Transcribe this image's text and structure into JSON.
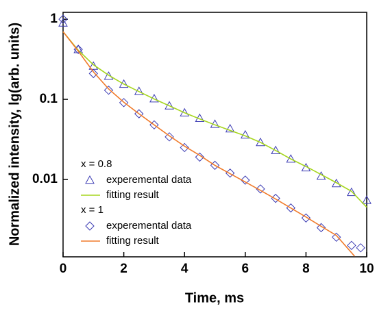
{
  "chart_data": {
    "type": "scatter",
    "x_label": "Time, ms",
    "y_label": "Normalized intensity, lg(arb. units)",
    "xlim": [
      0,
      10
    ],
    "xticks": [
      0,
      2,
      4,
      6,
      8,
      10
    ],
    "ylim": [
      0.00108,
      1.22
    ],
    "yticks": [
      0.01,
      0.1,
      1
    ],
    "y_log": true,
    "groups": [
      {
        "label": "x = 0.8",
        "series": [
          {
            "name": "experemental data",
            "marker": "triangle",
            "color": "#3b3bb3",
            "x": [
              0,
              0.5,
              1,
              1.5,
              2,
              2.5,
              3,
              3.5,
              4,
              4.5,
              5,
              5.5,
              6,
              6.5,
              7,
              7.5,
              8,
              8.5,
              9,
              9.5,
              10
            ],
            "values": [
              0.9,
              0.42,
              0.26,
              0.195,
              0.155,
              0.126,
              0.102,
              0.083,
              0.068,
              0.058,
              0.049,
              0.043,
              0.036,
              0.029,
              0.023,
              0.018,
              0.014,
              0.011,
              0.0089,
              0.0069,
              0.0055
            ]
          },
          {
            "name": "fitting result",
            "marker": "line",
            "color": "#a6d61e",
            "x": [
              0,
              0.5,
              1,
              1.5,
              2,
              2.5,
              3,
              3.5,
              4,
              4.5,
              5,
              5.5,
              6,
              6.5,
              7,
              7.5,
              8,
              8.5,
              9,
              9.5,
              10
            ],
            "values": [
              0.7,
              0.41,
              0.27,
              0.2,
              0.155,
              0.125,
              0.101,
              0.083,
              0.068,
              0.057,
              0.048,
              0.041,
              0.035,
              0.029,
              0.023,
              0.018,
              0.0145,
              0.0115,
              0.0091,
              0.0071,
              0.0045
            ]
          }
        ]
      },
      {
        "label": "x = 1",
        "series": [
          {
            "name": "experemental data",
            "marker": "diamond",
            "color": "#3b3bb3",
            "x": [
              0,
              0.5,
              1,
              1.5,
              2,
              2.5,
              3,
              3.5,
              4,
              4.5,
              5,
              5.5,
              6,
              6.5,
              7,
              7.5,
              8,
              8.5,
              9,
              9.5,
              9.8
            ],
            "values": [
              1.0,
              0.42,
              0.21,
              0.13,
              0.091,
              0.066,
              0.048,
              0.034,
              0.025,
              0.019,
              0.015,
              0.012,
              0.0098,
              0.0076,
              0.0058,
              0.0044,
              0.0033,
              0.0025,
              0.0019,
              0.0015,
              0.0014
            ]
          },
          {
            "name": "fitting result",
            "marker": "line",
            "color": "#f07a2a",
            "x": [
              0,
              0.5,
              1,
              1.5,
              2,
              2.5,
              3,
              3.5,
              4,
              4.5,
              5,
              5.5,
              6,
              6.5,
              7,
              7.5,
              8,
              8.5,
              9,
              9.6
            ],
            "values": [
              0.7,
              0.4,
              0.22,
              0.135,
              0.092,
              0.066,
              0.048,
              0.035,
              0.026,
              0.02,
              0.015,
              0.0118,
              0.0093,
              0.0073,
              0.0057,
              0.0044,
              0.0034,
              0.0026,
              0.002,
              0.0011
            ]
          }
        ]
      }
    ]
  }
}
